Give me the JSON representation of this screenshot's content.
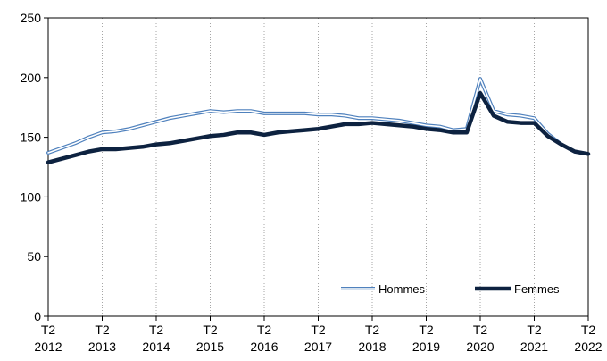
{
  "chart_data": {
    "type": "line",
    "title": "",
    "xlabel": "",
    "ylabel": "",
    "ylim": [
      0,
      250
    ],
    "yticks": [
      0,
      50,
      100,
      150,
      200,
      250
    ],
    "grid": "vertical dotted",
    "legend_placement": "bottom-right",
    "x_ticks": [
      {
        "top": "T2",
        "bottom": "2012"
      },
      {
        "top": "T2",
        "bottom": "2013"
      },
      {
        "top": "T2",
        "bottom": "2014"
      },
      {
        "top": "T2",
        "bottom": "2015"
      },
      {
        "top": "T2",
        "bottom": "2016"
      },
      {
        "top": "T2",
        "bottom": "2017"
      },
      {
        "top": "T2",
        "bottom": "2018"
      },
      {
        "top": "T2",
        "bottom": "2019"
      },
      {
        "top": "T2",
        "bottom": "2020"
      },
      {
        "top": "T2",
        "bottom": "2021"
      },
      {
        "top": "T2",
        "bottom": "2022"
      }
    ],
    "series": [
      {
        "name": "Hommes",
        "color": "#4f81bd",
        "style": "double-line",
        "values": [
          137,
          141,
          145,
          150,
          154,
          155,
          157,
          160,
          163,
          166,
          168,
          170,
          172,
          171,
          172,
          172,
          170,
          170,
          170,
          170,
          169,
          169,
          168,
          166,
          166,
          165,
          164,
          162,
          160,
          159,
          156,
          157,
          199,
          172,
          169,
          168,
          166,
          153,
          144,
          138,
          136
        ]
      },
      {
        "name": "Femmes",
        "color": "#0d2240",
        "style": "thick",
        "values": [
          129,
          132,
          135,
          138,
          140,
          140,
          141,
          142,
          144,
          145,
          147,
          149,
          151,
          152,
          154,
          154,
          152,
          154,
          155,
          156,
          157,
          159,
          161,
          161,
          162,
          161,
          160,
          159,
          157,
          156,
          154,
          154,
          187,
          168,
          163,
          162,
          162,
          151,
          144,
          138,
          136
        ]
      }
    ]
  }
}
